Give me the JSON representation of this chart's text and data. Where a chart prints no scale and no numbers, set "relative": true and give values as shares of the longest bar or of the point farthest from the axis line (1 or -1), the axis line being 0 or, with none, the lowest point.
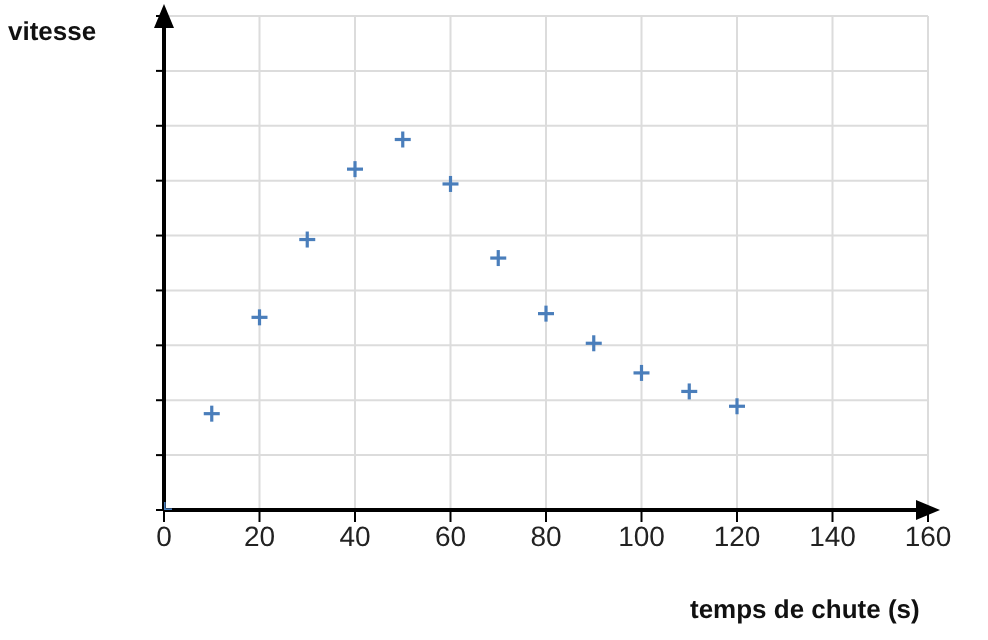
{
  "chart_data": {
    "type": "scatter",
    "xlabel": "temps de chute (s)",
    "ylabel": "vitesse",
    "relative": true,
    "x": [
      0,
      10,
      20,
      30,
      40,
      50,
      60,
      70,
      80,
      90,
      100,
      110,
      120
    ],
    "values": [
      0,
      0.26,
      0.52,
      0.73,
      0.92,
      1,
      0.88,
      0.68,
      0.53,
      0.45,
      0.37,
      0.32,
      0.28
    ],
    "color": "#4a7ebb",
    "marker": "cross",
    "grid": true,
    "xlim": [
      0,
      160
    ],
    "xticks": [
      0,
      20,
      40,
      60,
      80,
      100,
      120,
      140,
      160
    ]
  }
}
